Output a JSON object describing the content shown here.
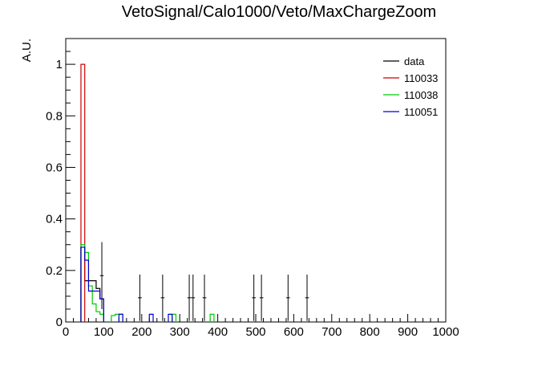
{
  "chart_data": {
    "type": "histogram",
    "title": "VetoSignal/Calo1000/Veto/MaxChargeZoom",
    "xlabel": "",
    "ylabel": "A.U.",
    "xlim": [
      0,
      1000
    ],
    "ylim": [
      0,
      1.1
    ],
    "bin_width": 10,
    "xticks": [
      0,
      100,
      200,
      300,
      400,
      500,
      600,
      700,
      800,
      900,
      1000
    ],
    "yticks": [
      0,
      0.2,
      0.4,
      0.6,
      0.8,
      1
    ],
    "ytick_labels": [
      "0",
      "0.2",
      "0.4",
      "0.6",
      "0.8",
      "1"
    ],
    "legend_position": "top-right",
    "grid": false,
    "series": [
      {
        "name": "data",
        "color": "#000000",
        "style": "step",
        "bins": [
          [
            40,
            0.29
          ],
          [
            50,
            0.16
          ],
          [
            60,
            0.16
          ],
          [
            70,
            0.16
          ],
          [
            80,
            0.13
          ],
          [
            90,
            0.09
          ]
        ]
      },
      {
        "name": "data",
        "color": "#000000",
        "style": "errorbar",
        "points": [
          {
            "x": 95,
            "y": 0.18,
            "err": 0.13
          },
          {
            "x": 195,
            "y": 0.094,
            "err": 0.09
          },
          {
            "x": 255,
            "y": 0.094,
            "err": 0.09
          },
          {
            "x": 325,
            "y": 0.094,
            "err": 0.09
          },
          {
            "x": 335,
            "y": 0.094,
            "err": 0.09
          },
          {
            "x": 365,
            "y": 0.094,
            "err": 0.09
          },
          {
            "x": 495,
            "y": 0.094,
            "err": 0.09
          },
          {
            "x": 515,
            "y": 0.094,
            "err": 0.09
          },
          {
            "x": 585,
            "y": 0.094,
            "err": 0.09
          },
          {
            "x": 635,
            "y": 0.094,
            "err": 0.09
          }
        ]
      },
      {
        "name": "110033",
        "color": "#cc0000",
        "style": "step",
        "bins": [
          [
            40,
            1.0
          ]
        ]
      },
      {
        "name": "110038",
        "color": "#00cc00",
        "style": "step",
        "bins": [
          [
            40,
            0.3
          ],
          [
            50,
            0.27
          ],
          [
            60,
            0.14
          ],
          [
            70,
            0.07
          ],
          [
            80,
            0.04
          ],
          [
            90,
            0.03
          ],
          [
            120,
            0.025
          ],
          [
            130,
            0.03
          ],
          [
            140,
            0.03
          ],
          [
            280,
            0.03
          ],
          [
            380,
            0.03
          ]
        ]
      },
      {
        "name": "110051",
        "color": "#0000cc",
        "style": "step",
        "bins": [
          [
            40,
            0.29
          ],
          [
            50,
            0.24
          ],
          [
            60,
            0.12
          ],
          [
            70,
            0.12
          ],
          [
            80,
            0.12
          ],
          [
            90,
            0.09
          ],
          [
            140,
            0.03
          ],
          [
            220,
            0.03
          ],
          [
            270,
            0.03
          ]
        ]
      }
    ],
    "legend": [
      "data",
      "110033",
      "110038",
      "110051"
    ]
  }
}
